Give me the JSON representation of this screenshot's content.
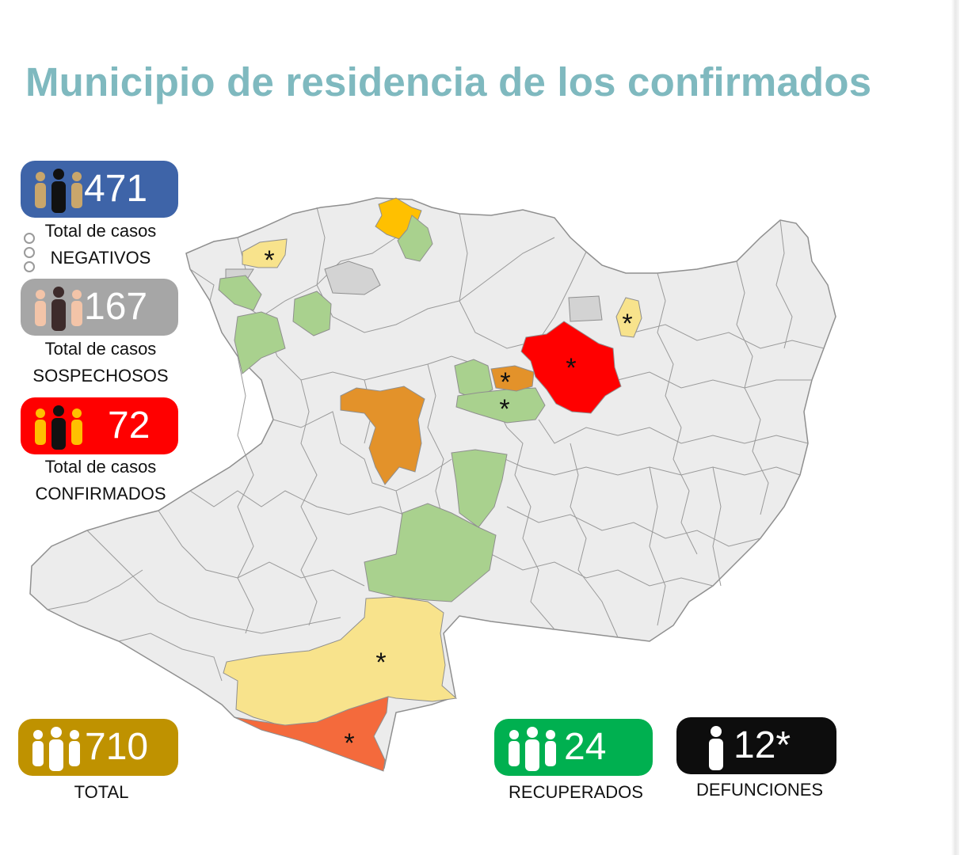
{
  "title": "Municipio de residencia de los confirmados",
  "stats": {
    "negativos": {
      "value": "471",
      "caption_1": "Total de casos",
      "caption_2": "NEGATIVOS",
      "color": "#3e64a8"
    },
    "sospechosos": {
      "value": "167",
      "caption_1": "Total de casos",
      "caption_2": "SOSPECHOSOS",
      "color": "#a6a6a6"
    },
    "confirmados": {
      "value": "72",
      "caption_1": "Total de casos",
      "caption_2": "CONFIRMADOS",
      "color": "#ff0000"
    },
    "total": {
      "value": "710",
      "caption": "TOTAL",
      "color": "#bf9200"
    },
    "recuperados": {
      "value": "24",
      "caption": "RECUPERADOS",
      "color": "#00b050"
    },
    "defunciones": {
      "value": "12*",
      "caption": "DEFUNCIONES",
      "color": "#0d0d0d"
    }
  },
  "map_colors": {
    "base": "#ececec",
    "border": "#9a9a9a",
    "red": "#ff0000",
    "orange": "#e3922a",
    "red_orange": "#f46a3c",
    "yellow": "#f8e38c",
    "gold": "#ffc000",
    "green": "#a9d18e",
    "grey": "#d3d3d3"
  },
  "marker": "*"
}
